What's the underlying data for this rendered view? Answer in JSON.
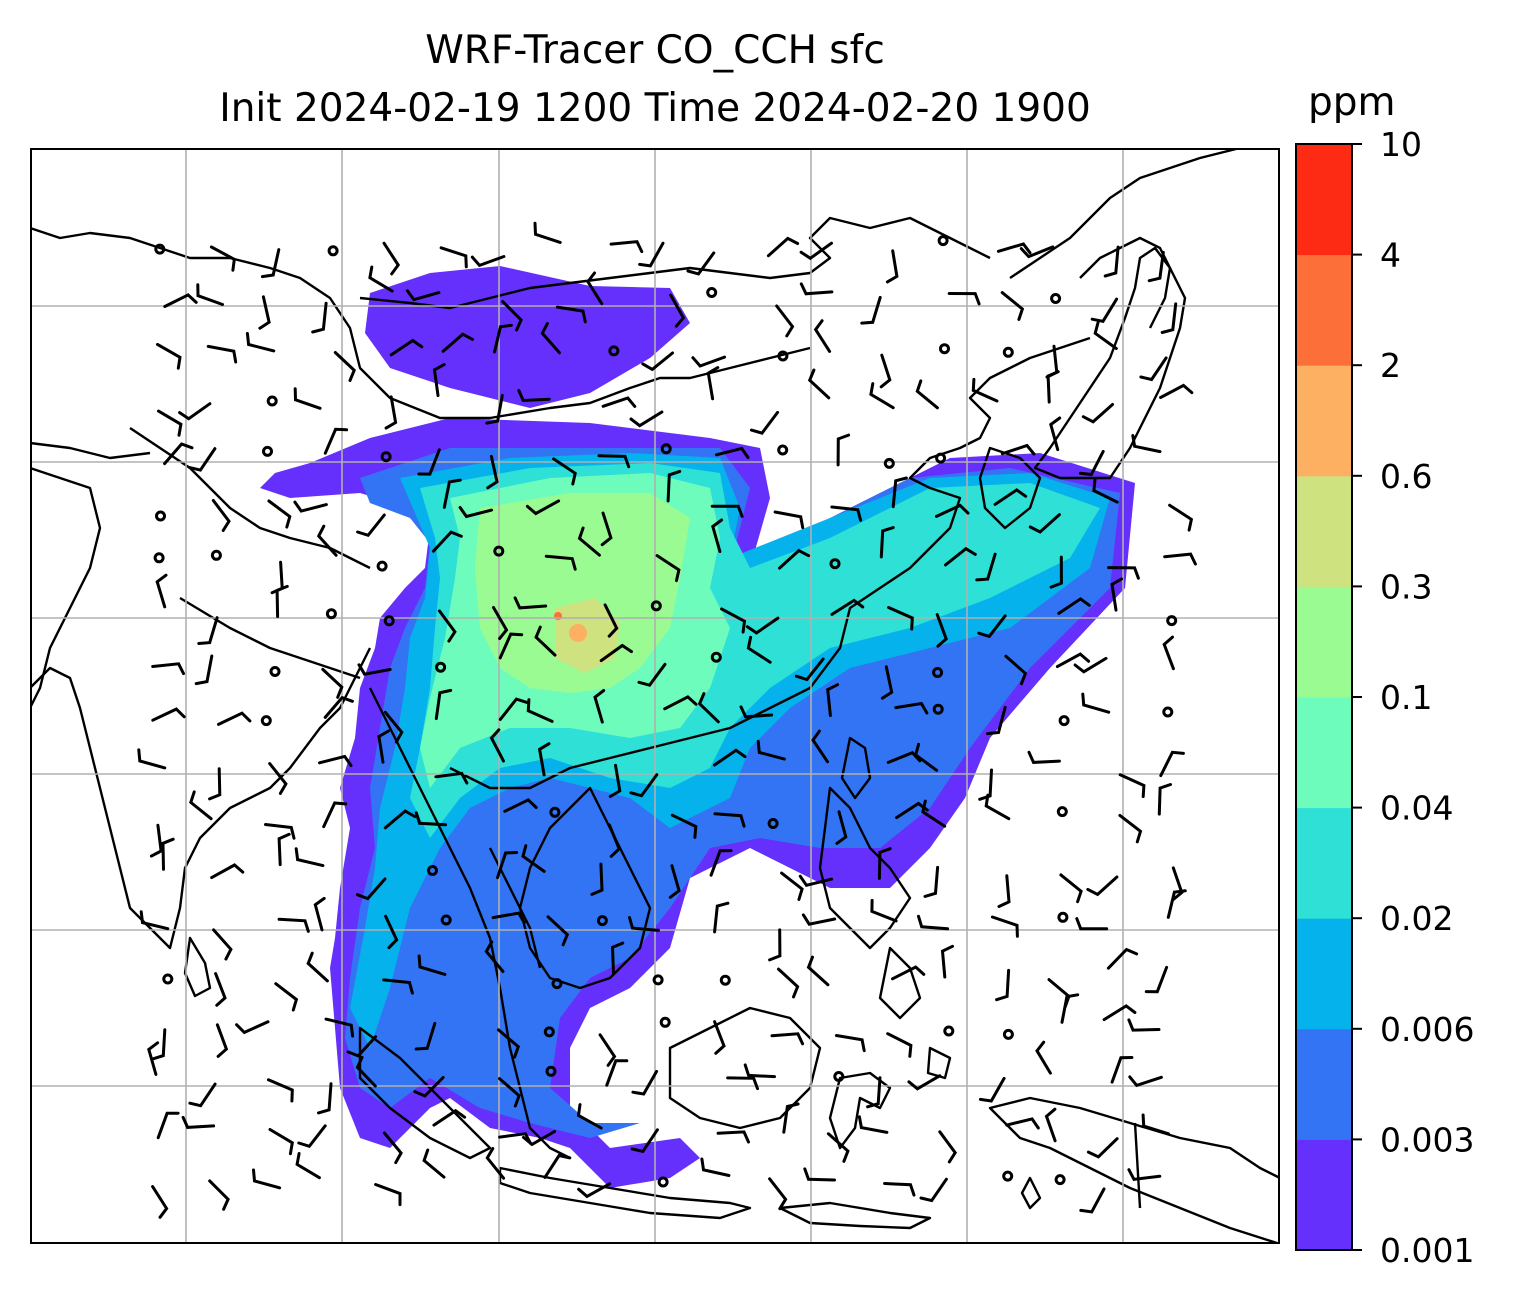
{
  "title": {
    "line1": "WRF-Tracer CO_CCH sfc",
    "line2": "Init 2024-02-19 1200 Time 2024-02-20 1900"
  },
  "colorbar": {
    "unit": "ppm",
    "levels": [
      "0.001",
      "0.003",
      "0.006",
      "0.02",
      "0.04",
      "0.1",
      "0.3",
      "0.6",
      "2",
      "4",
      "10"
    ],
    "colors": [
      "#6530fb",
      "#3374f5",
      "#05b2eb",
      "#2ee0d6",
      "#6efcbd",
      "#9afb93",
      "#cee27f",
      "#fdb061",
      "#fd6f38",
      "#fd2b14"
    ]
  },
  "map": {
    "projection": "PlateCarree",
    "gridlines": true,
    "coastlines": true,
    "borders": true,
    "wind_barbs": true,
    "calm_circles": true
  }
}
